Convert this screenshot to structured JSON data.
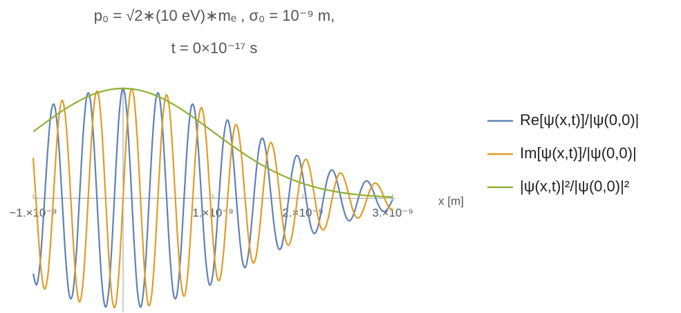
{
  "chart_data": {
    "type": "line",
    "title": "p₀ = √2∗(10 eV)∗mₑ ,  σ₀ = 10⁻⁹ m,",
    "subtitle": "t = 0×10⁻¹⁷ s",
    "x_label": "x [m]",
    "xlim": [
      -1e-09,
      3e-09
    ],
    "ylim": [
      -1,
      1
    ],
    "xticks": [
      {
        "value": -1e-09,
        "label": "−1.×10⁻⁹"
      },
      {
        "value": 1e-09,
        "label": "1.×10⁻⁹"
      },
      {
        "value": 2e-09,
        "label": "2.×10⁻⁹"
      },
      {
        "value": 3e-09,
        "label": "3.×10⁻⁹"
      }
    ],
    "x": [
      -1e-09,
      -9.6e-10,
      -9.2e-10,
      -8.8e-10,
      -8.4e-10,
      -8e-10,
      -7.6e-10,
      -7.2e-10,
      -6.8e-10,
      -6.4e-10,
      -6e-10,
      -5.6e-10,
      -5.2e-10,
      -4.8e-10,
      -4.4e-10,
      -4e-10,
      -3.6e-10,
      -3.2e-10,
      -2.8e-10,
      -2.4e-10,
      -2e-10,
      -1.6e-10,
      -1.2e-10,
      -8e-11,
      -4e-11,
      0,
      4e-11,
      8e-11,
      1.2e-10,
      1.6e-10,
      2e-10,
      2.4e-10,
      2.8e-10,
      3.2e-10,
      3.6e-10,
      4e-10,
      4.4e-10,
      4.8e-10,
      5.2e-10,
      5.6e-10,
      6e-10,
      6.4e-10,
      6.8e-10,
      7.2e-10,
      7.6e-10,
      8e-10,
      8.4e-10,
      8.8e-10,
      9.2e-10,
      9.6e-10,
      1e-09,
      1.04e-09,
      1.08e-09,
      1.12e-09,
      1.16e-09,
      1.2e-09,
      1.24e-09,
      1.28e-09,
      1.32e-09,
      1.36e-09,
      1.4e-09,
      1.44e-09,
      1.48e-09,
      1.52e-09,
      1.56e-09,
      1.6e-09,
      1.64e-09,
      1.68e-09,
      1.72e-09,
      1.76e-09,
      1.8e-09,
      1.84e-09,
      1.88e-09,
      1.92e-09,
      1.96e-09,
      2e-09,
      2.04e-09,
      2.08e-09,
      2.12e-09,
      2.16e-09,
      2.2e-09,
      2.24e-09,
      2.28e-09,
      2.32e-09,
      2.36e-09,
      2.4e-09,
      2.44e-09,
      2.48e-09,
      2.52e-09,
      2.56e-09,
      2.6e-09,
      2.64e-09,
      2.68e-09,
      2.72e-09,
      2.76e-09,
      2.8e-09,
      2.84e-09,
      2.88e-09,
      2.92e-09,
      2.96e-09,
      3e-09
    ],
    "series": [
      {
        "name": "Re[ψ(x,t)]/|ψ(0,0)|",
        "color": "#5e81b5",
        "values": [
          -0.6861,
          -0.7848,
          -0.5622,
          -0.0984,
          0.4226,
          0.7867,
          0.8378,
          0.5449,
          0.0188,
          -0.5296,
          -0.8742,
          -0.8678,
          -0.5048,
          0.0731,
          0.6322,
          0.9422,
          0.8714,
          0.4431,
          -0.1718,
          -0.7235,
          -0.9851,
          -0.8473,
          -0.3634,
          0.2709,
          0.797,
          1,
          0.797,
          0.2709,
          -0.3634,
          -0.8473,
          -0.9851,
          -0.7235,
          -0.1718,
          0.4431,
          0.8714,
          0.9422,
          0.6322,
          0.0731,
          -0.5048,
          -0.8678,
          -0.8742,
          -0.5296,
          0.0188,
          0.5449,
          0.8378,
          0.7867,
          0.4226,
          -0.0984,
          -0.5622,
          -0.7848,
          -0.6861,
          -0.3179,
          0.1618,
          0.5569,
          0.7132,
          0.5791,
          0.2214,
          -0.2069,
          -0.5318,
          -0.6292,
          -0.4724,
          -0.1372,
          0.2335,
          0.4905,
          0.5388,
          0.3716,
          0.0682,
          -0.2429,
          -0.438,
          -0.4479,
          -0.2809,
          -0.0151,
          0.2377,
          0.3789,
          0.361,
          0.2031,
          -0.0223,
          -0.2213,
          -0.3179,
          -0.2823,
          -0.1393,
          0.046,
          0.1974,
          0.2587,
          0.2138,
          0.0895,
          -0.0581,
          -0.1695,
          -0.2044,
          -0.1566,
          -0.0526,
          0.0615,
          0.1403,
          0.1567,
          0.1107,
          0.0267,
          -0.0588,
          -0.1124,
          -0.1166,
          -0.0754,
          -0.0097
        ]
      },
      {
        "name": "Im[ψ(x,t)]/|ψ(0,0)|",
        "color": "#e19c24",
        "values": [
          0.3686,
          -0.1226,
          -0.5821,
          -0.8181,
          -0.724,
          -0.3275,
          0.2172,
          0.689,
          0.8906,
          0.731,
          0.2664,
          -0.319,
          -0.7866,
          -0.9412,
          -0.7129,
          -0.1882,
          0.4218,
          0.8682,
          0.9654,
          0.6695,
          0.0975,
          -0.5189,
          -0.9277,
          -0.961,
          -0.6034,
          0,
          0.6034,
          0.961,
          0.9277,
          0.5189,
          -0.0975,
          -0.6695,
          -0.9654,
          -0.8682,
          -0.4218,
          0.1882,
          0.7129,
          0.9412,
          0.7866,
          0.319,
          -0.2664,
          -0.731,
          -0.8906,
          -0.689,
          -0.2172,
          0.3275,
          0.724,
          0.8181,
          0.5821,
          0.1226,
          -0.3686,
          -0.6937,
          -0.7294,
          -0.4733,
          -0.0403,
          0.3891,
          0.6439,
          0.6308,
          0.3684,
          -0.0266,
          -0.39,
          -0.5795,
          -0.5291,
          -0.2726,
          0.0764,
          0.3741,
          0.5059,
          0.43,
          0.1897,
          -0.1093,
          -0.345,
          -0.4287,
          -0.3381,
          -0.1214,
          0.1269,
          0.3068,
          0.3526,
          0.2568,
          0.0682,
          -0.1317,
          -0.2636,
          -0.2815,
          -0.188,
          -0.0293,
          0.1267,
          0.2193,
          0.2181,
          0.1321,
          0.0029,
          -0.1151,
          -0.1769,
          -0.1639,
          -0.0887,
          0.0133,
          0.0996,
          0.1383,
          0.1194,
          0.0564,
          -0.0216,
          -0.0826,
          -0.105
        ]
      },
      {
        "name": "|ψ(x,t)|²/|ψ(0,0)|²",
        "color": "#8fb032",
        "values": [
          0.6065,
          0.6309,
          0.6549,
          0.679,
          0.7027,
          0.7261,
          0.7492,
          0.7717,
          0.7936,
          0.8148,
          0.8353,
          0.8549,
          0.8735,
          0.8912,
          0.9077,
          0.9231,
          0.9373,
          0.9501,
          0.9616,
          0.9716,
          0.9802,
          0.9873,
          0.9928,
          0.9968,
          0.9992,
          1,
          0.9992,
          0.9968,
          0.9928,
          0.9873,
          0.9802,
          0.9716,
          0.9616,
          0.9501,
          0.9373,
          0.9231,
          0.9077,
          0.8912,
          0.8735,
          0.8549,
          0.8353,
          0.8148,
          0.7936,
          0.7717,
          0.7492,
          0.7261,
          0.7027,
          0.679,
          0.6549,
          0.6309,
          0.6065,
          0.5823,
          0.5581,
          0.5341,
          0.5103,
          0.4868,
          0.4636,
          0.4408,
          0.4185,
          0.3966,
          0.3753,
          0.3546,
          0.3345,
          0.315,
          0.2962,
          0.278,
          0.2606,
          0.2438,
          0.2278,
          0.2125,
          0.1979,
          0.184,
          0.1708,
          0.1583,
          0.1465,
          0.1353,
          0.1248,
          0.115,
          0.1057,
          0.097,
          0.0889,
          0.0814,
          0.0743,
          0.0678,
          0.0617,
          0.0561,
          0.0509,
          0.0462,
          0.0418,
          0.0378,
          0.034,
          0.0307,
          0.0276,
          0.0247,
          0.0222,
          0.0198,
          0.0177,
          0.0158,
          0.0141,
          0.0125,
          0.0111
        ]
      }
    ]
  }
}
